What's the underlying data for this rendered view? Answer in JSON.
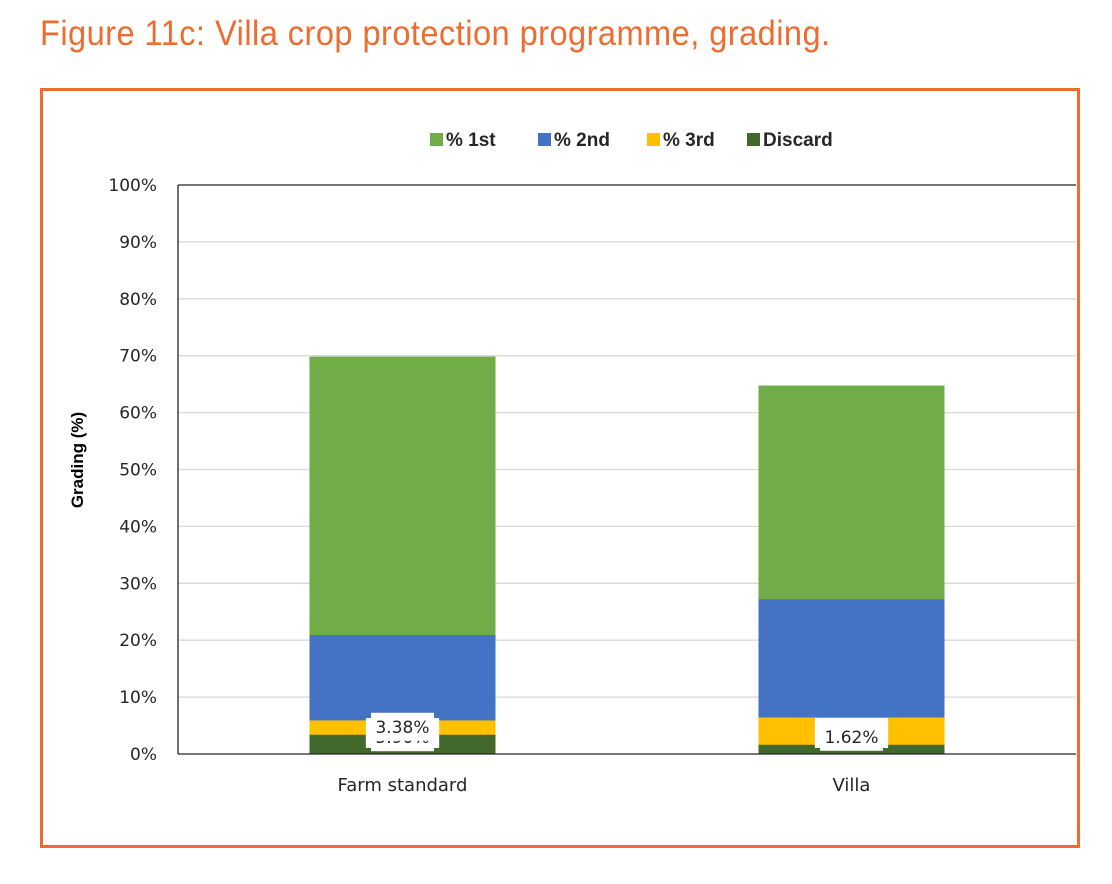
{
  "figure_title": "Figure 11c: Villa crop protection programme, grading.",
  "colors": {
    "accent": "#ee6c2f",
    "first": "#70ad47",
    "second": "#4472c4",
    "third": "#ffc000",
    "discard": "#43682b"
  },
  "chart_data": {
    "type": "bar",
    "stacked": true,
    "title": "",
    "xlabel": "",
    "ylabel": "Grading (%)",
    "ylim": [
      0,
      100
    ],
    "yticks": [
      "0%",
      "10%",
      "20%",
      "30%",
      "40%",
      "50%",
      "60%",
      "70%",
      "80%",
      "90%",
      "100%"
    ],
    "grid": true,
    "legend_position": "top",
    "categories": [
      "Farm standard",
      "Villa"
    ],
    "series": [
      {
        "name": "% 1st",
        "color": "#70ad47",
        "values": [
          69.84,
          64.75
        ],
        "labels": [
          "69.84%",
          "64.75%"
        ]
      },
      {
        "name": "% 2nd",
        "color": "#4472c4",
        "values": [
          20.89,
          27.2
        ],
        "labels": [
          "20.89%",
          "27.20%"
        ]
      },
      {
        "name": "% 3rd",
        "color": "#ffc000",
        "values": [
          5.9,
          6.42
        ],
        "labels": [
          "5.90%",
          "6.42%"
        ]
      },
      {
        "name": "Discard",
        "color": "#43682b",
        "values": [
          3.38,
          1.62
        ],
        "labels": [
          "3.38%",
          "1.62%"
        ]
      }
    ]
  }
}
